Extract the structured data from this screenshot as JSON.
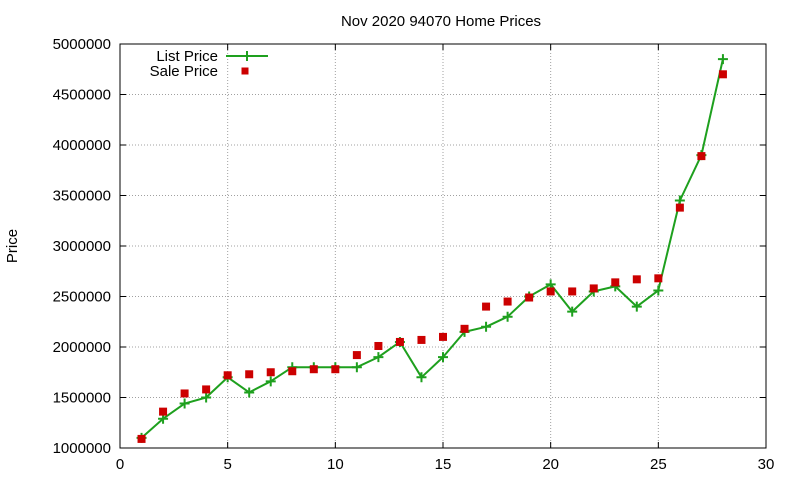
{
  "chart_data": {
    "type": "line",
    "title": "Nov 2020 94070 Home Prices",
    "xlabel": "",
    "ylabel": "Price",
    "xlim": [
      0,
      30
    ],
    "ylim": [
      1000000,
      5000000
    ],
    "x_ticks": [
      0,
      5,
      10,
      15,
      20,
      25,
      30
    ],
    "y_ticks": [
      1000000,
      1500000,
      2000000,
      2500000,
      3000000,
      3500000,
      4000000,
      4500000,
      5000000
    ],
    "grid": true,
    "legend_position": "top-left",
    "series": [
      {
        "name": "List Price",
        "style": "line+cross",
        "color": "#1ea01e",
        "x": [
          1,
          2,
          3,
          4,
          5,
          6,
          7,
          8,
          9,
          10,
          11,
          12,
          13,
          14,
          15,
          16,
          17,
          18,
          19,
          20,
          21,
          22,
          23,
          24,
          25,
          26,
          27,
          28
        ],
        "values": [
          1100000,
          1290000,
          1440000,
          1500000,
          1700000,
          1550000,
          1660000,
          1800000,
          1800000,
          1800000,
          1800000,
          1900000,
          2050000,
          1700000,
          1900000,
          2150000,
          2200000,
          2300000,
          2500000,
          2620000,
          2350000,
          2550000,
          2600000,
          2400000,
          2560000,
          3450000,
          3900000,
          4850000
        ]
      },
      {
        "name": "Sale Price",
        "style": "square",
        "color": "#cc0000",
        "x": [
          1,
          2,
          3,
          4,
          5,
          6,
          7,
          8,
          9,
          10,
          11,
          12,
          13,
          14,
          15,
          16,
          17,
          18,
          19,
          20,
          21,
          22,
          23,
          24,
          25,
          26,
          27,
          28
        ],
        "values": [
          1090000,
          1360000,
          1540000,
          1580000,
          1720000,
          1730000,
          1750000,
          1760000,
          1780000,
          1780000,
          1920000,
          2010000,
          2050000,
          2070000,
          2100000,
          2180000,
          2400000,
          2450000,
          2490000,
          2550000,
          2550000,
          2580000,
          2640000,
          2670000,
          2680000,
          3380000,
          3890000,
          4700000
        ]
      }
    ]
  }
}
